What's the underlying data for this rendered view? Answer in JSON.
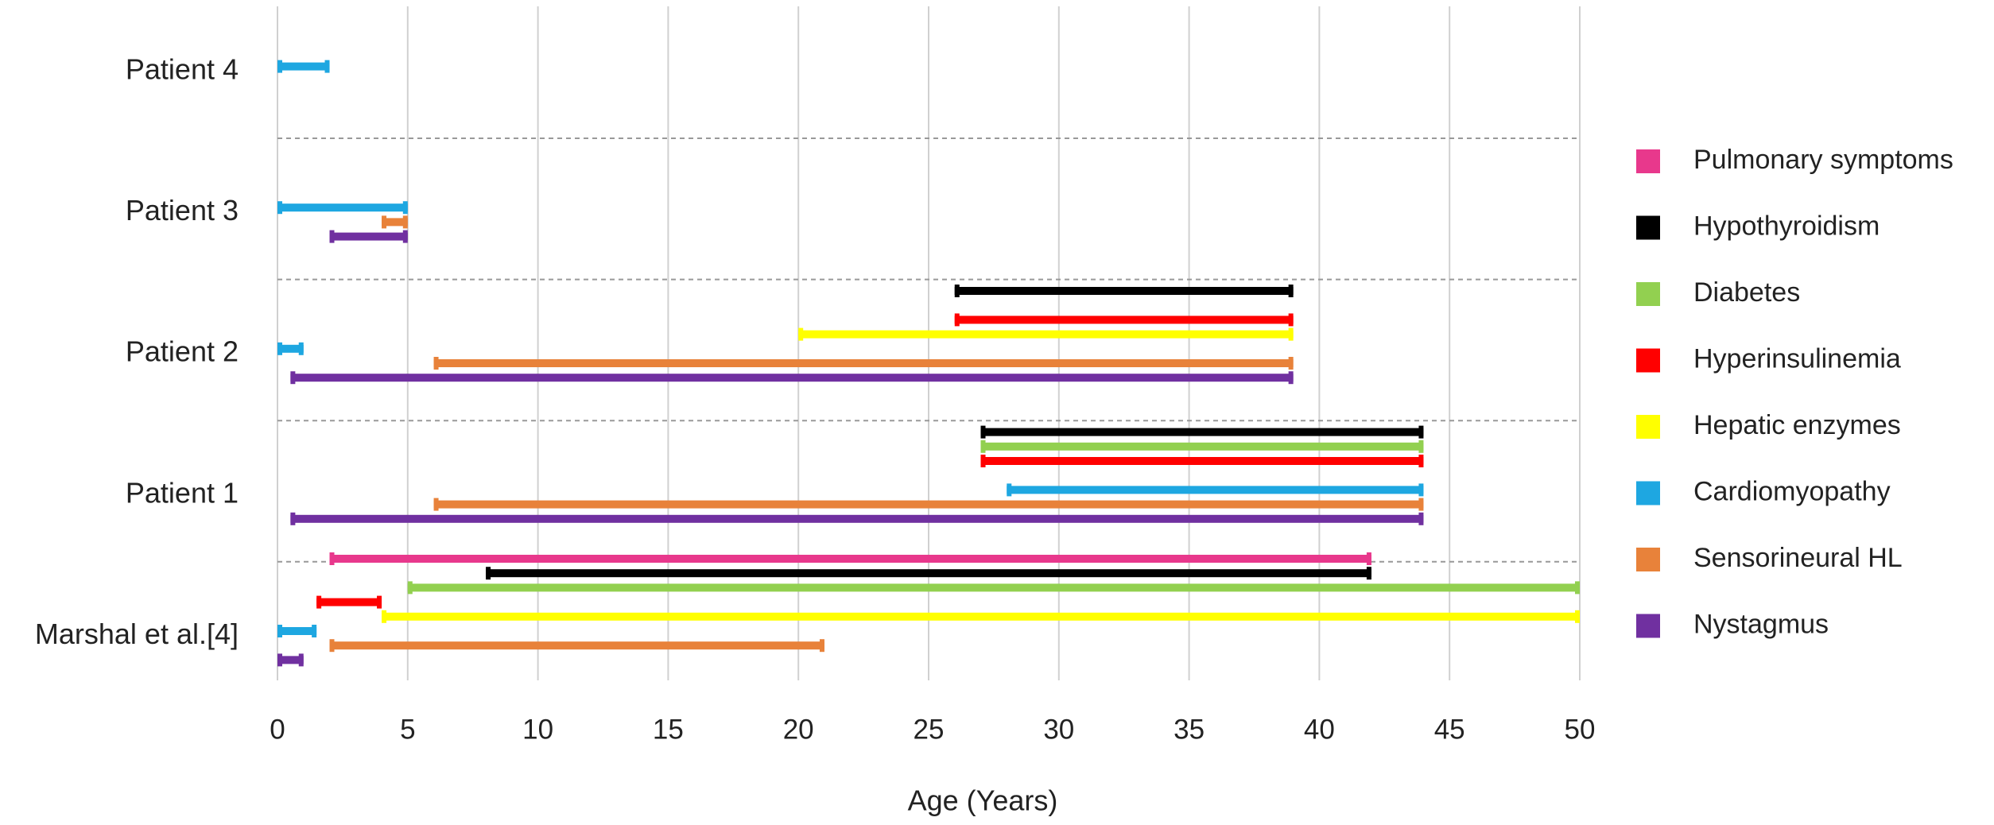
{
  "chart_data": {
    "type": "range-bar",
    "x_label": "Age (Years)",
    "xlim": [
      0,
      50
    ],
    "xticks": [
      0,
      5,
      10,
      15,
      20,
      25,
      30,
      35,
      40,
      45,
      50
    ],
    "grid": true,
    "categories": [
      "Patient 4",
      "Patient 3",
      "Patient 2",
      "Patient 1",
      "Marshal et al.[4]"
    ],
    "series": [
      {
        "name": "Pulmonary symptoms",
        "color": "#e8388c",
        "start": [
          null,
          null,
          null,
          null,
          2
        ],
        "end": [
          null,
          null,
          null,
          null,
          42
        ]
      },
      {
        "name": "Hypothyroidism",
        "color": "#000000",
        "start": [
          null,
          null,
          26,
          27,
          8
        ],
        "end": [
          null,
          null,
          39,
          44,
          42
        ]
      },
      {
        "name": "Diabetes",
        "color": "#92d050",
        "start": [
          null,
          null,
          null,
          27,
          5
        ],
        "end": [
          null,
          null,
          null,
          44,
          50
        ]
      },
      {
        "name": "Hyperinsulinemia",
        "color": "#ff0000",
        "start": [
          null,
          null,
          26,
          27,
          1.5
        ],
        "end": [
          null,
          null,
          39,
          44,
          4
        ]
      },
      {
        "name": "Hepatic enzymes",
        "color": "#ffff00",
        "start": [
          null,
          null,
          20,
          null,
          4
        ],
        "end": [
          null,
          null,
          39,
          null,
          50
        ]
      },
      {
        "name": "Cardiomyopathy",
        "color": "#1ea7e1",
        "start": [
          0,
          0,
          0,
          28,
          0
        ],
        "end": [
          2,
          5,
          1,
          44,
          1.5
        ]
      },
      {
        "name": "Sensorineural HL",
        "color": "#e8823a",
        "start": [
          null,
          4,
          6,
          6,
          2
        ],
        "end": [
          null,
          5,
          39,
          44,
          21
        ]
      },
      {
        "name": "Nystagmus",
        "color": "#7030a0",
        "start": [
          null,
          2,
          0.5,
          0.5,
          0
        ],
        "end": [
          null,
          5,
          39,
          44,
          1
        ]
      }
    ]
  }
}
